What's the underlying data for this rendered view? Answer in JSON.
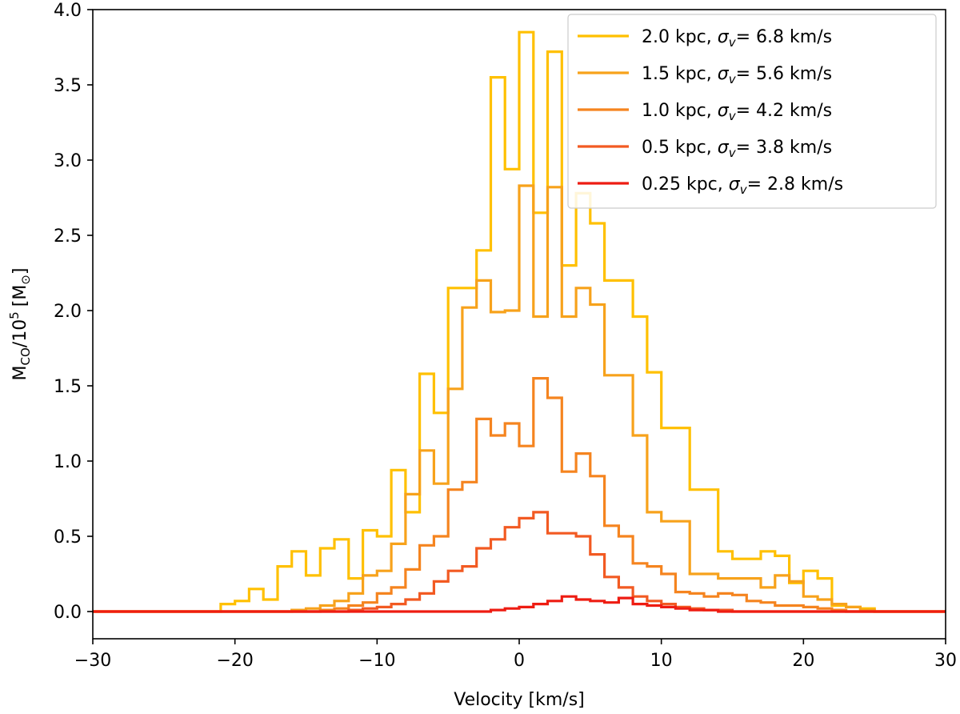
{
  "chart_data": {
    "type": "line",
    "style": "step-histogram",
    "title": "",
    "xlabel": "Velocity [km/s]",
    "ylabel_main": "M",
    "ylabel_sub": "CO",
    "ylabel_mid": "/10",
    "ylabel_sup": "5",
    "ylabel_unit": "[M",
    "ylabel_unit_sym": "⊙",
    "ylabel_unit_close": "]",
    "xlim": [
      -30,
      30
    ],
    "ylim": [
      -0.19,
      4.0
    ],
    "xticks": [
      -30,
      -20,
      -10,
      0,
      10,
      20,
      30
    ],
    "xtick_labels": [
      "−30",
      "−20",
      "−10",
      "0",
      "10",
      "20",
      "30"
    ],
    "yticks": [
      0.0,
      0.5,
      1.0,
      1.5,
      2.0,
      2.5,
      3.0,
      3.5,
      4.0
    ],
    "ytick_labels": [
      "0.0",
      "0.5",
      "1.0",
      "1.5",
      "2.0",
      "2.5",
      "3.0",
      "3.5",
      "4.0"
    ],
    "grid": false,
    "legend_position": "top-right",
    "bin_edges": [
      -30,
      -29,
      -28,
      -27,
      -26,
      -25,
      -24,
      -23,
      -22,
      -21,
      -20,
      -19,
      -18,
      -17,
      -16,
      -15,
      -14,
      -13,
      -12,
      -11,
      -10,
      -9,
      -8,
      -7,
      -6,
      -5,
      -4,
      -3,
      -2,
      -1,
      0,
      1,
      2,
      3,
      4,
      5,
      6,
      7,
      8,
      9,
      10,
      11,
      12,
      13,
      14,
      15,
      16,
      17,
      18,
      19,
      20,
      21,
      22,
      23,
      24,
      25,
      26,
      27,
      28,
      29,
      30
    ],
    "series": [
      {
        "name": "2.0 kpc",
        "label_prefix": "2.0 kpc, ",
        "sigma_symbol": "σ",
        "sigma_sub": "v",
        "label_suffix": "=  6.8 km/s",
        "color": "#FFC000",
        "values": [
          0,
          0,
          0,
          0,
          0,
          0,
          0,
          0,
          0,
          0.05,
          0.07,
          0.15,
          0.08,
          0.3,
          0.4,
          0.24,
          0.42,
          0.48,
          0.22,
          0.54,
          0.5,
          0.94,
          0.66,
          1.58,
          1.32,
          2.15,
          2.15,
          2.4,
          3.55,
          2.94,
          3.85,
          2.65,
          3.72,
          2.3,
          2.78,
          2.58,
          2.2,
          2.2,
          1.96,
          1.59,
          1.22,
          1.22,
          0.81,
          0.81,
          0.4,
          0.35,
          0.35,
          0.4,
          0.37,
          0.19,
          0.27,
          0.22,
          0.04,
          0.03,
          0.02,
          0,
          0,
          0,
          0,
          0
        ]
      },
      {
        "name": "1.5 kpc",
        "label_prefix": "1.5 kpc, ",
        "sigma_symbol": "σ",
        "sigma_sub": "v",
        "label_suffix": "=  5.6 km/s",
        "color": "#F7A21B",
        "values": [
          0,
          0,
          0,
          0,
          0,
          0,
          0,
          0,
          0,
          0,
          0,
          0,
          0,
          0,
          0.01,
          0.02,
          0.04,
          0.07,
          0.12,
          0.24,
          0.27,
          0.45,
          0.78,
          1.07,
          0.85,
          1.48,
          2.02,
          2.2,
          1.99,
          2.0,
          2.83,
          1.96,
          2.82,
          1.96,
          2.15,
          2.04,
          1.57,
          1.57,
          1.17,
          0.66,
          0.6,
          0.6,
          0.25,
          0.25,
          0.22,
          0.22,
          0.22,
          0.16,
          0.24,
          0.2,
          0.1,
          0.08,
          0.05,
          0.03,
          0.01,
          0,
          0,
          0,
          0,
          0
        ]
      },
      {
        "name": "1.0 kpc",
        "label_prefix": "1.0 kpc, ",
        "sigma_symbol": "σ",
        "sigma_sub": "v",
        "label_suffix": "=  4.2 km/s",
        "color": "#F5841F",
        "values": [
          0,
          0,
          0,
          0,
          0,
          0,
          0,
          0,
          0,
          0,
          0,
          0,
          0,
          0,
          0,
          0,
          0.01,
          0.02,
          0.04,
          0.06,
          0.12,
          0.16,
          0.28,
          0.44,
          0.5,
          0.81,
          0.86,
          1.28,
          1.17,
          1.25,
          1.1,
          1.55,
          1.42,
          0.93,
          1.05,
          0.9,
          0.57,
          0.5,
          0.32,
          0.3,
          0.25,
          0.13,
          0.12,
          0.1,
          0.12,
          0.11,
          0.07,
          0.06,
          0.04,
          0.04,
          0.03,
          0.02,
          0.01,
          0,
          0,
          0,
          0,
          0,
          0,
          0
        ]
      },
      {
        "name": "0.5 kpc",
        "label_prefix": "0.5 kpc, ",
        "sigma_symbol": "σ",
        "sigma_sub": "v",
        "label_suffix": "=  3.8 km/s",
        "color": "#F25A22",
        "values": [
          0,
          0,
          0,
          0,
          0,
          0,
          0,
          0,
          0,
          0,
          0,
          0,
          0,
          0,
          0,
          0,
          0,
          0,
          0.01,
          0.02,
          0.03,
          0.05,
          0.08,
          0.12,
          0.2,
          0.27,
          0.3,
          0.42,
          0.48,
          0.56,
          0.62,
          0.66,
          0.52,
          0.52,
          0.5,
          0.38,
          0.23,
          0.16,
          0.1,
          0.07,
          0.05,
          0.03,
          0.02,
          0.01,
          0.01,
          0,
          0,
          0,
          0,
          0,
          0,
          0,
          0,
          0,
          0,
          0,
          0,
          0,
          0,
          0
        ]
      },
      {
        "name": "0.25 kpc",
        "label_prefix": "0.25 kpc, ",
        "sigma_symbol": "σ",
        "sigma_sub": "v",
        "label_suffix": "=  2.8 km/s",
        "color": "#EE1C12",
        "values": [
          0,
          0,
          0,
          0,
          0,
          0,
          0,
          0,
          0,
          0,
          0,
          0,
          0,
          0,
          0,
          0,
          0,
          0,
          0,
          0,
          0,
          0,
          0,
          0,
          0,
          0,
          0,
          0,
          0.01,
          0.02,
          0.03,
          0.05,
          0.07,
          0.1,
          0.08,
          0.07,
          0.06,
          0.09,
          0.05,
          0.04,
          0.03,
          0.02,
          0.01,
          0.01,
          0,
          0,
          0,
          0,
          0,
          0,
          0,
          0,
          0,
          0,
          0,
          0,
          0,
          0,
          0,
          0
        ]
      }
    ]
  }
}
